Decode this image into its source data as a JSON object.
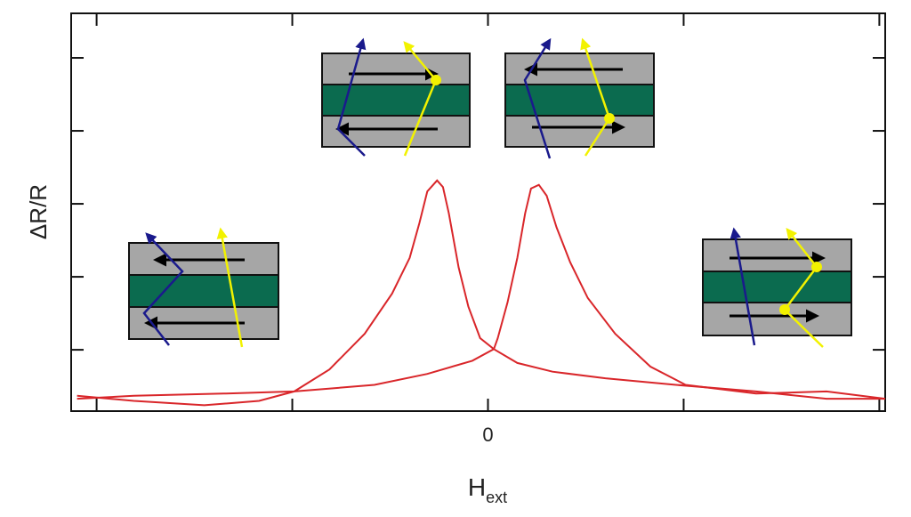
{
  "chart_data": {
    "type": "line",
    "y_label": "ΔR/R",
    "x_label": "H",
    "x_label_subscript": "ext",
    "xlim": [
      -2.13,
      2.03
    ],
    "ylim": [
      0.16,
      5.61
    ],
    "xticks": [
      {
        "value": -2,
        "label": null
      },
      {
        "value": -1,
        "label": null
      },
      0,
      {
        "value": 1,
        "label": null
      },
      {
        "value": 2,
        "label": null
      }
    ],
    "yticks": [
      {
        "value": 1,
        "label": null
      },
      {
        "value": 2,
        "label": null
      },
      {
        "value": 3,
        "label": null
      },
      {
        "value": 4,
        "label": null
      },
      {
        "value": 5,
        "label": null
      }
    ],
    "series": [
      {
        "color": "#d9262a",
        "x": [
          -2.1,
          -1.81,
          -1.45,
          -1.17,
          -0.99,
          -0.81,
          -0.63,
          -0.49,
          -0.4,
          -0.35,
          -0.31,
          -0.26,
          -0.23,
          -0.2,
          -0.15,
          -0.1,
          -0.04,
          0.03,
          0.15,
          0.33,
          0.6,
          0.96,
          1.37,
          1.73,
          2.03
        ],
        "values": [
          0.37,
          0.3,
          0.24,
          0.3,
          0.43,
          0.73,
          1.22,
          1.77,
          2.26,
          2.74,
          3.17,
          3.32,
          3.23,
          2.87,
          2.13,
          1.59,
          1.16,
          1.01,
          0.82,
          0.7,
          0.61,
          0.52,
          0.43,
          0.33,
          0.33
        ]
      },
      {
        "color": "#d9262a",
        "x": [
          2.03,
          1.73,
          1.37,
          1.01,
          0.83,
          0.65,
          0.51,
          0.42,
          0.35,
          0.3,
          0.26,
          0.22,
          0.19,
          0.15,
          0.1,
          0.05,
          0.03,
          -0.08,
          -0.31,
          -0.58,
          -0.99,
          -1.35,
          -1.81,
          -2.1
        ],
        "values": [
          0.33,
          0.43,
          0.4,
          0.52,
          0.77,
          1.22,
          1.71,
          2.2,
          2.68,
          3.11,
          3.26,
          3.21,
          2.87,
          2.26,
          1.65,
          1.16,
          1.01,
          0.85,
          0.67,
          0.52,
          0.43,
          0.4,
          0.37,
          0.33
        ]
      }
    ]
  }
}
